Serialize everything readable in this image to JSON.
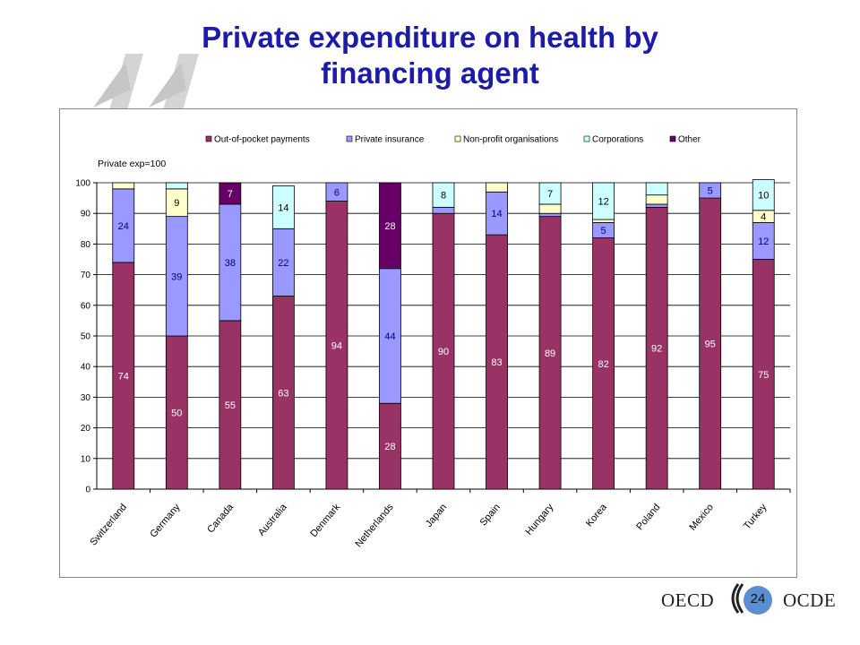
{
  "title_line1": "Private expenditure on health by",
  "title_line2": "financing agent",
  "footer": {
    "left": "OECD",
    "right": "OCDE",
    "page": "24"
  },
  "colors": {
    "oop": "#993366",
    "private_insurance": "#9999ff",
    "nonprofit": "#ffffcc",
    "corporations": "#ccffff",
    "other": "#660066",
    "title": "#1c1ca8"
  },
  "chart_data": {
    "type": "bar",
    "stacked": true,
    "title": "",
    "ylabel": "Private exp=100",
    "xlabel": "",
    "ylim": [
      0,
      100
    ],
    "yticks": [
      0,
      10,
      20,
      30,
      40,
      50,
      60,
      70,
      80,
      90,
      100
    ],
    "grid": true,
    "legend_position": "top",
    "categories": [
      "Switzerland",
      "Germany",
      "Canada",
      "Australia",
      "Denmark",
      "Netherlands",
      "Japan",
      "Spain",
      "Hungary",
      "Korea",
      "Poland",
      "Mexico",
      "Turkey"
    ],
    "series": [
      {
        "name": "Out-of-pocket payments",
        "values": [
          74,
          50,
          55,
          63,
          94,
          28,
          90,
          83,
          89,
          82,
          92,
          95,
          75
        ],
        "labels": [
          "74",
          "50",
          "55",
          "63",
          "94",
          "28",
          "90",
          "83",
          "89",
          "82",
          "92",
          "95",
          "75"
        ]
      },
      {
        "name": "Private insurance",
        "values": [
          24,
          39,
          38,
          22,
          6,
          44,
          2,
          14,
          1,
          5,
          1,
          5,
          12
        ],
        "labels": [
          "24",
          "39",
          "38",
          "22",
          "6",
          "44",
          "",
          "14",
          "",
          "5",
          "",
          "5",
          "12"
        ]
      },
      {
        "name": "Non-profit organisations",
        "values": [
          2,
          9,
          0,
          0,
          0,
          0,
          0,
          3,
          3,
          1,
          3,
          0,
          4
        ],
        "labels": [
          "",
          "9",
          "",
          "",
          "",
          "",
          "",
          "",
          "",
          "",
          "",
          "",
          "4"
        ]
      },
      {
        "name": "Corporations",
        "values": [
          0,
          2,
          0,
          14,
          0,
          0,
          8,
          0,
          7,
          12,
          4,
          0,
          10
        ],
        "labels": [
          "",
          "",
          "",
          "14",
          "",
          "",
          "8",
          "",
          "7",
          "12",
          "",
          "",
          "10"
        ]
      },
      {
        "name": "Other",
        "values": [
          0,
          0,
          7,
          0,
          0,
          28,
          0,
          0,
          0,
          0,
          0,
          0,
          0
        ],
        "labels": [
          "",
          "",
          "7",
          "",
          "",
          "28",
          "",
          "",
          "",
          "",
          "",
          "",
          ""
        ]
      }
    ]
  }
}
